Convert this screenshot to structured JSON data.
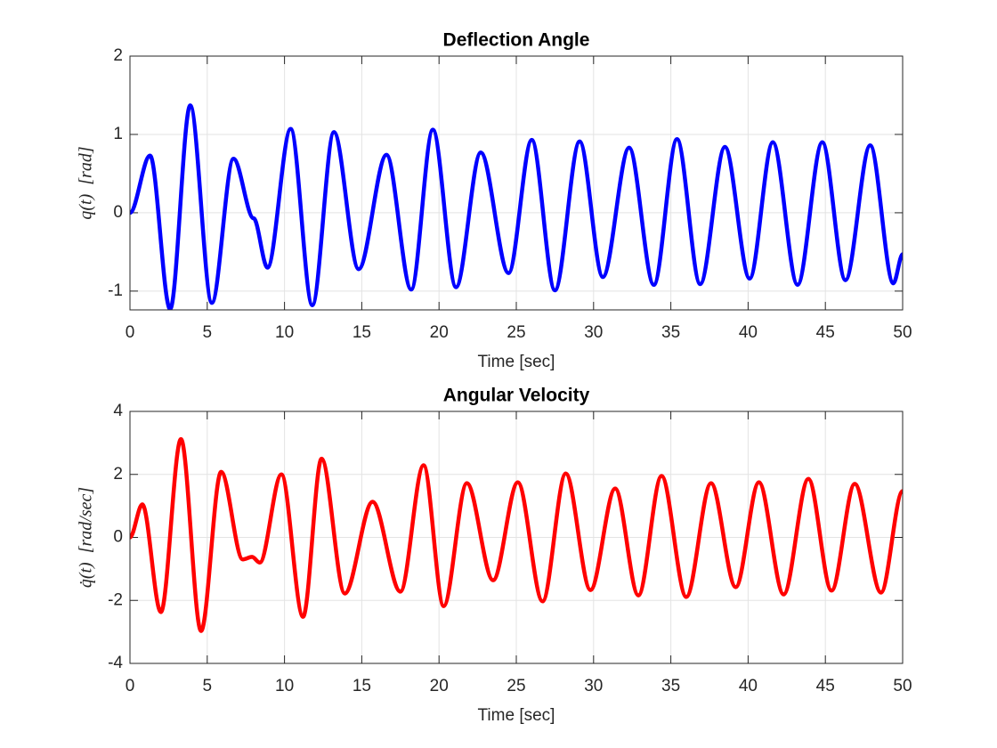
{
  "chart_data": [
    {
      "type": "line",
      "title": "Deflection Angle",
      "xlabel": "Time [sec]",
      "ylabel": "q(t)  [rad]",
      "x": [
        0,
        1.3,
        2.6,
        3.9,
        5.3,
        6.7,
        8.0,
        8.9,
        10.4,
        11.8,
        13.2,
        14.8,
        16.6,
        18.2,
        19.6,
        21.1,
        22.7,
        24.5,
        26.0,
        27.5,
        29.1,
        30.6,
        32.3,
        33.9,
        35.4,
        36.9,
        38.5,
        40.1,
        41.6,
        43.2,
        44.8,
        46.3,
        47.9,
        49.4,
        50
      ],
      "series": [
        {
          "color": "#0000ff",
          "values": [
            0,
            0.73,
            -1.23,
            1.37,
            -1.15,
            0.69,
            -0.07,
            -0.7,
            1.07,
            -1.18,
            1.03,
            -0.72,
            0.74,
            -0.98,
            1.06,
            -0.95,
            0.77,
            -0.77,
            0.93,
            -0.99,
            0.91,
            -0.82,
            0.83,
            -0.92,
            0.94,
            -0.91,
            0.84,
            -0.84,
            0.9,
            -0.92,
            0.9,
            -0.86,
            0.86,
            -0.9,
            -0.53
          ]
        }
      ],
      "xlim": [
        0,
        50
      ],
      "xticks": [
        0,
        5,
        10,
        15,
        20,
        25,
        30,
        35,
        40,
        45,
        50
      ],
      "ylim": [
        -1.24,
        2
      ],
      "yticks": [
        -1,
        0,
        1,
        2
      ],
      "grid": true
    },
    {
      "type": "line",
      "title": "Angular Velocity",
      "xlabel": "Time [sec]",
      "ylabel": "q̇(t)  [rad/sec]",
      "x": [
        0,
        0.8,
        2.0,
        3.3,
        4.6,
        5.9,
        7.3,
        7.9,
        8.4,
        9.8,
        11.2,
        12.4,
        13.9,
        15.7,
        17.5,
        19.0,
        20.3,
        21.8,
        23.5,
        25.1,
        26.7,
        28.2,
        29.8,
        31.4,
        32.9,
        34.4,
        36.0,
        37.6,
        39.2,
        40.7,
        42.3,
        43.9,
        45.4,
        46.9,
        48.6,
        50
      ],
      "series": [
        {
          "color": "#ff0000",
          "values": [
            0,
            1.05,
            -2.37,
            3.12,
            -2.97,
            2.08,
            -0.7,
            -0.62,
            -0.8,
            2.0,
            -2.52,
            2.5,
            -1.78,
            1.13,
            -1.72,
            2.29,
            -2.18,
            1.72,
            -1.36,
            1.75,
            -2.03,
            2.03,
            -1.67,
            1.55,
            -1.84,
            1.95,
            -1.89,
            1.72,
            -1.58,
            1.75,
            -1.81,
            1.86,
            -1.69,
            1.7,
            -1.75,
            1.47
          ]
        }
      ],
      "xlim": [
        0,
        50
      ],
      "xticks": [
        0,
        5,
        10,
        15,
        20,
        25,
        30,
        35,
        40,
        45,
        50
      ],
      "ylim": [
        -4,
        4
      ],
      "yticks": [
        -4,
        -2,
        0,
        2,
        4
      ],
      "grid": true
    }
  ]
}
